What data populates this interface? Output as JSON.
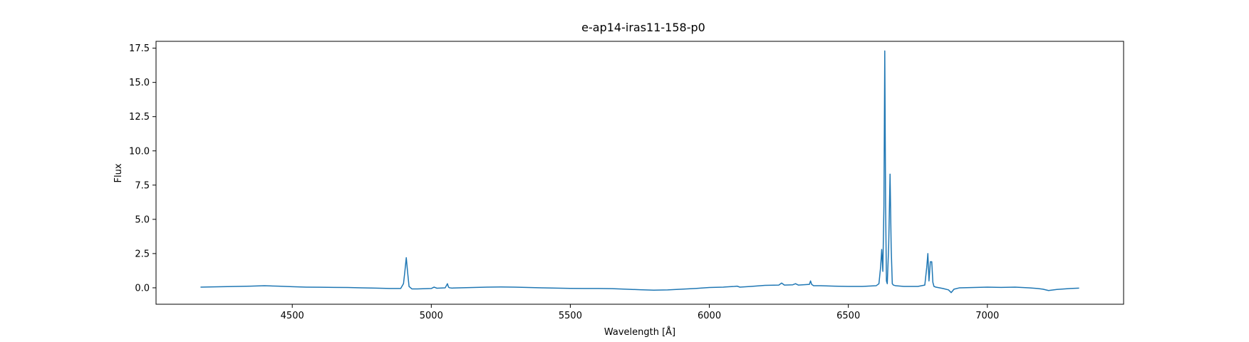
{
  "chart_data": {
    "type": "line",
    "title": "e-ap14-iras11-158-p0",
    "xlabel": "Wavelength [Å]",
    "ylabel": "Flux",
    "xlim": [
      4010,
      7490
    ],
    "ylim": [
      -1.2,
      18.0
    ],
    "xticks": [
      4500,
      5000,
      5500,
      6000,
      6500,
      7000
    ],
    "xtick_labels": [
      "4500",
      "5000",
      "5500",
      "6000",
      "6500",
      "7000"
    ],
    "yticks": [
      0.0,
      2.5,
      5.0,
      7.5,
      10.0,
      12.5,
      15.0,
      17.5
    ],
    "ytick_labels": [
      "0.0",
      "2.5",
      "5.0",
      "7.5",
      "10.0",
      "12.5",
      "15.0",
      "17.5"
    ],
    "grid": false,
    "series": [
      {
        "color": "#1f77b4",
        "x": [
          4170,
          4200,
          4250,
          4300,
          4350,
          4400,
          4450,
          4500,
          4550,
          4600,
          4650,
          4700,
          4750,
          4800,
          4850,
          4890,
          4900,
          4905,
          4910,
          4915,
          4920,
          4930,
          4950,
          5000,
          5010,
          5020,
          5050,
          5058,
          5062,
          5066,
          5075,
          5100,
          5150,
          5200,
          5250,
          5300,
          5350,
          5400,
          5450,
          5500,
          5550,
          5600,
          5650,
          5700,
          5750,
          5800,
          5850,
          5900,
          5950,
          6000,
          6050,
          6090,
          6100,
          6110,
          6150,
          6200,
          6250,
          6260,
          6270,
          6300,
          6310,
          6320,
          6360,
          6364,
          6368,
          6375,
          6400,
          6450,
          6500,
          6550,
          6600,
          6610,
          6616,
          6620,
          6624,
          6628,
          6631,
          6634,
          6637,
          6640,
          6645,
          6650,
          6654,
          6658,
          6662,
          6670,
          6700,
          6750,
          6775,
          6782,
          6786,
          6790,
          6795,
          6800,
          6804,
          6808,
          6815,
          6840,
          6860,
          6870,
          6880,
          6900,
          6950,
          7000,
          7050,
          7100,
          7150,
          7180,
          7200,
          7220,
          7250,
          7300,
          7330
        ],
        "y": [
          0.05,
          0.06,
          0.08,
          0.1,
          0.12,
          0.15,
          0.12,
          0.08,
          0.05,
          0.04,
          0.03,
          0.02,
          0.0,
          -0.02,
          -0.05,
          -0.05,
          0.3,
          1.2,
          2.2,
          1.1,
          0.1,
          -0.08,
          -0.08,
          -0.05,
          0.05,
          -0.03,
          0.0,
          0.3,
          0.05,
          0.0,
          -0.02,
          0.0,
          0.02,
          0.05,
          0.06,
          0.05,
          0.02,
          0.0,
          -0.02,
          -0.04,
          -0.05,
          -0.05,
          -0.06,
          -0.1,
          -0.14,
          -0.17,
          -0.15,
          -0.1,
          -0.05,
          0.02,
          0.05,
          0.1,
          0.12,
          0.05,
          0.1,
          0.18,
          0.2,
          0.35,
          0.2,
          0.22,
          0.3,
          0.2,
          0.25,
          0.5,
          0.25,
          0.15,
          0.15,
          0.12,
          0.1,
          0.1,
          0.15,
          0.3,
          1.5,
          2.8,
          1.2,
          6.0,
          17.3,
          6.0,
          0.5,
          0.3,
          3.0,
          8.3,
          3.0,
          0.3,
          0.2,
          0.15,
          0.1,
          0.1,
          0.2,
          1.5,
          2.5,
          0.5,
          1.9,
          1.9,
          0.4,
          0.1,
          0.05,
          -0.05,
          -0.15,
          -0.35,
          -0.1,
          0.0,
          0.02,
          0.05,
          0.03,
          0.05,
          0.0,
          -0.05,
          -0.1,
          -0.2,
          -0.12,
          -0.05,
          -0.02
        ]
      }
    ]
  }
}
